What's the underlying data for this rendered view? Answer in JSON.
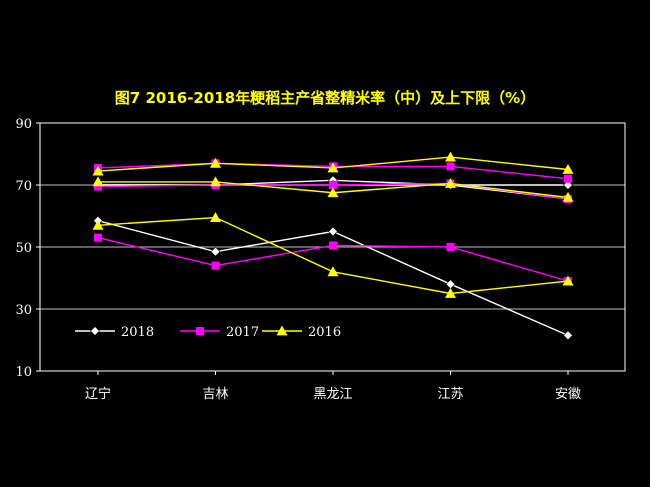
{
  "chart_data": {
    "type": "line",
    "title": "图7   2016-2018年粳稻主产省整精米率（中）及上下限（%）",
    "categories": [
      "辽宁",
      "吉林",
      "黑龙江",
      "江苏",
      "安徽"
    ],
    "ylim": [
      10,
      90
    ],
    "yticks": [
      10,
      30,
      50,
      70,
      90
    ],
    "grid": true,
    "legend_position": "lower-left",
    "colors": {
      "2018": "#ffffff",
      "2017": "#ff00ff",
      "2016": "#ffff00",
      "title": "#ffff00",
      "background": "#000000"
    },
    "series": [
      {
        "name": "2018",
        "marker": "diamond",
        "color": "#ffffff",
        "lines": [
          {
            "band": "upper",
            "values": [
              70,
              70,
              71.5,
              70,
              70
            ]
          },
          {
            "band": "middle",
            "values": [
              70,
              70,
              70,
              70,
              65.5
            ]
          },
          {
            "band": "lower",
            "values": [
              58.5,
              48.5,
              55,
              38,
              21.5
            ]
          }
        ]
      },
      {
        "name": "2017",
        "marker": "square",
        "color": "#ff00ff",
        "lines": [
          {
            "band": "upper",
            "values": [
              75.5,
              77,
              76,
              76,
              72
            ]
          },
          {
            "band": "middle",
            "values": [
              69.5,
              70,
              70,
              70.5,
              65.5
            ]
          },
          {
            "band": "lower",
            "values": [
              53,
              44,
              50.5,
              50,
              39
            ]
          }
        ]
      },
      {
        "name": "2016",
        "marker": "triangle",
        "color": "#ffff00",
        "lines": [
          {
            "band": "upper",
            "values": [
              74.5,
              77,
              75.5,
              79,
              75
            ]
          },
          {
            "band": "middle",
            "values": [
              71,
              71,
              67.5,
              70.5,
              66
            ]
          },
          {
            "band": "lower",
            "values": [
              57,
              59.5,
              42,
              35,
              39
            ]
          }
        ]
      }
    ]
  }
}
